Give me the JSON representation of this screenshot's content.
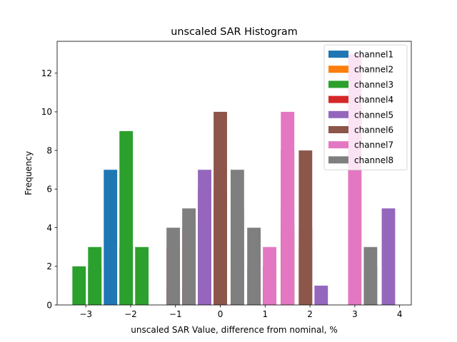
{
  "chart_data": {
    "type": "bar",
    "stacked": "overlapping",
    "title": "unscaled SAR Histogram",
    "xlabel": "unscaled SAR Value, difference from nominal, %",
    "ylabel": "Frequency",
    "xlim": [
      -3.64,
      4.26
    ],
    "ylim": [
      0,
      13.65
    ],
    "xticks": [
      -3,
      -2,
      -1,
      0,
      1,
      2,
      3,
      4
    ],
    "xtick_labels": [
      "−3",
      "−2",
      "−1",
      "0",
      "1",
      "2",
      "3",
      "4"
    ],
    "yticks": [
      0,
      2,
      4,
      6,
      8,
      10,
      12
    ],
    "ytick_labels": [
      "0",
      "2",
      "4",
      "6",
      "8",
      "10",
      "12"
    ],
    "bar_width": 0.3,
    "legend_position": "top-right",
    "series": [
      {
        "name": "channel1",
        "color": "#1f77b4",
        "points": [
          [
            -2.8,
            2
          ],
          [
            -2.45,
            7
          ],
          [
            -2.1,
            3
          ],
          [
            -1.05,
            1
          ]
        ]
      },
      {
        "name": "channel2",
        "color": "#ff7f0e",
        "points": [
          [
            0.0,
            3
          ],
          [
            0.38,
            2
          ],
          [
            0.75,
            1
          ],
          [
            1.5,
            4
          ],
          [
            1.9,
            3
          ]
        ]
      },
      {
        "name": "channel3",
        "color": "#2ca02c",
        "points": [
          [
            -3.15,
            2
          ],
          [
            -2.8,
            3
          ],
          [
            -2.1,
            9
          ],
          [
            -1.75,
            3
          ],
          [
            -0.7,
            1
          ]
        ]
      },
      {
        "name": "channel4",
        "color": "#d62728",
        "points": [
          [
            -1.05,
            3
          ],
          [
            -0.7,
            4
          ],
          [
            -0.35,
            6
          ],
          [
            0.0,
            5
          ]
        ]
      },
      {
        "name": "channel5",
        "color": "#9467bd",
        "points": [
          [
            -0.35,
            7
          ],
          [
            0.0,
            6
          ],
          [
            1.1,
            1
          ],
          [
            1.5,
            5
          ],
          [
            1.9,
            4
          ],
          [
            2.25,
            1
          ],
          [
            3.35,
            2
          ],
          [
            3.75,
            5
          ]
        ]
      },
      {
        "name": "channel6",
        "color": "#8c564b",
        "points": [
          [
            0.0,
            10
          ],
          [
            0.38,
            3
          ],
          [
            1.1,
            2
          ],
          [
            1.5,
            8
          ],
          [
            1.9,
            8
          ]
        ]
      },
      {
        "name": "channel7",
        "color": "#e377c2",
        "points": [
          [
            0.38,
            5
          ],
          [
            0.75,
            2
          ],
          [
            1.1,
            3
          ],
          [
            1.5,
            10
          ],
          [
            3.0,
            13
          ]
        ]
      },
      {
        "name": "channel8",
        "color": "#7f7f7f",
        "points": [
          [
            -1.05,
            4
          ],
          [
            -0.7,
            5
          ],
          [
            0.38,
            7
          ],
          [
            0.75,
            4
          ],
          [
            3.35,
            3
          ]
        ]
      }
    ]
  }
}
